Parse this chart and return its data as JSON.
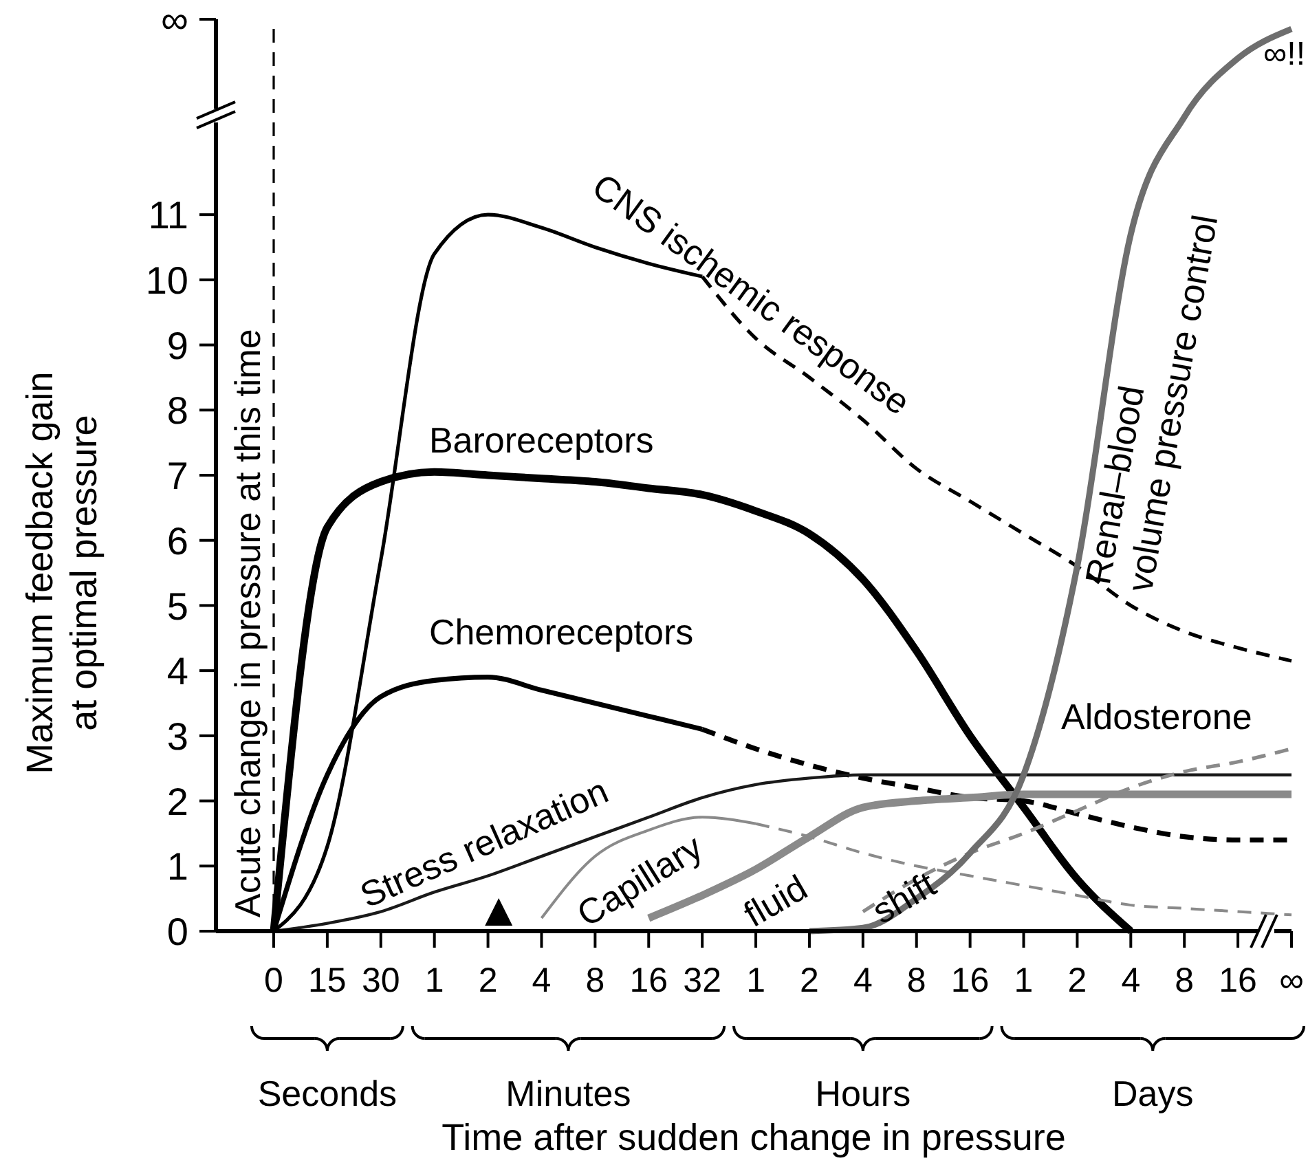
{
  "chart_data": {
    "type": "line",
    "xlabel": "Time after sudden change in pressure",
    "ylabel": "Maximum feedback gain at optimal pressure",
    "ylim": [
      0,
      14
    ],
    "categories": [
      "0",
      "15",
      "30",
      "1",
      "2",
      "4",
      "8",
      "16",
      "32",
      "1",
      "2",
      "4",
      "8",
      "16",
      "1",
      "2",
      "4",
      "8",
      "16",
      "∞"
    ],
    "yticks": [
      0,
      1,
      2,
      3,
      4,
      5,
      6,
      7,
      8,
      9,
      10,
      11,
      {
        "value": 14,
        "label": "∞"
      }
    ],
    "grid": false,
    "legend": false,
    "ref_lines": [
      {
        "axis": "x",
        "value": "0",
        "label": "Acute change in pressure at this time",
        "line_style": "dashed",
        "color": "#000000"
      }
    ],
    "annotations": [
      "Seconds",
      "Minutes",
      "Hours",
      "Days",
      "∞!!"
    ],
    "series": [
      {
        "name": "CNS ischemic response",
        "color": "#000000",
        "line_style": "solid",
        "values": [
          0,
          1.3,
          5.7,
          10.4,
          11.0,
          10.8,
          10.5,
          10.25,
          10.05,
          null,
          null,
          null,
          null,
          null,
          null,
          null,
          null,
          null,
          null,
          null
        ]
      },
      {
        "color": "#000000",
        "line_style": "dashed",
        "values": [
          null,
          null,
          null,
          null,
          null,
          null,
          null,
          null,
          10.05,
          9.1,
          8.5,
          7.85,
          7.1,
          6.6,
          6.1,
          5.6,
          5.0,
          4.6,
          4.35,
          4.15
        ]
      },
      {
        "name": "Baroreceptors",
        "color": "#000000",
        "line_style": "solid",
        "values": [
          0,
          6.2,
          6.9,
          7.05,
          7.0,
          6.95,
          6.9,
          6.8,
          6.7,
          6.45,
          6.1,
          5.4,
          4.3,
          3.0,
          1.9,
          0.8,
          0,
          null,
          null,
          null
        ]
      },
      {
        "name": "Chemoreceptors",
        "color": "#000000",
        "line_style": "solid",
        "values": [
          0,
          2.4,
          3.6,
          3.85,
          3.9,
          3.7,
          3.5,
          3.3,
          3.1,
          null,
          null,
          null,
          null,
          null,
          null,
          null,
          null,
          null,
          null,
          null
        ]
      },
      {
        "color": "#000000",
        "line_style": "dashed",
        "values": [
          null,
          null,
          null,
          null,
          null,
          null,
          null,
          null,
          3.1,
          2.8,
          2.55,
          2.35,
          2.2,
          2.05,
          2.0,
          1.8,
          1.6,
          1.45,
          1.4,
          1.4
        ]
      },
      {
        "name": "Stress relaxation",
        "color": "#1a1a1a",
        "line_style": "solid",
        "values": [
          0,
          0.12,
          0.3,
          0.6,
          0.85,
          1.15,
          1.45,
          1.75,
          2.05,
          2.25,
          2.35,
          2.4,
          2.4,
          2.4,
          2.4,
          2.4,
          2.4,
          2.4,
          2.4,
          2.4
        ]
      },
      {
        "name": "Capillary fluid shift",
        "color": "#8a8a8a",
        "line_style": "solid",
        "values": [
          null,
          null,
          null,
          null,
          null,
          0.2,
          1.15,
          1.55,
          1.75,
          1.65,
          null,
          null,
          null,
          null,
          null,
          null,
          null,
          null,
          null,
          null
        ]
      },
      {
        "color": "#8a8a8a",
        "line_style": "dashed",
        "values": [
          null,
          null,
          null,
          null,
          null,
          null,
          null,
          null,
          null,
          1.65,
          1.45,
          1.2,
          1.0,
          0.85,
          0.7,
          0.55,
          0.4,
          0.35,
          0.3,
          0.25
        ]
      },
      {
        "color": "#8a8a8a",
        "line_style": "solid",
        "values": [
          null,
          null,
          null,
          null,
          null,
          null,
          null,
          0.2,
          0.55,
          0.95,
          1.45,
          1.9,
          2.0,
          2.05,
          2.1,
          2.1,
          2.1,
          2.1,
          2.1,
          2.1
        ]
      },
      {
        "name": "Aldosterone",
        "color": "#8a8a8a",
        "line_style": "dashed",
        "values": [
          null,
          null,
          null,
          null,
          null,
          null,
          null,
          null,
          null,
          null,
          null,
          0.3,
          0.8,
          1.2,
          1.5,
          1.85,
          2.2,
          2.45,
          2.6,
          2.8
        ]
      },
      {
        "name": "Renal–blood volume pressure control",
        "color": "#6e6e6e",
        "line_style": "solid",
        "values": [
          null,
          null,
          null,
          null,
          null,
          null,
          null,
          null,
          null,
          null,
          0,
          0.05,
          0.5,
          1.2,
          2.4,
          5.6,
          10.7,
          12.5,
          13.4,
          13.85
        ]
      }
    ]
  }
}
